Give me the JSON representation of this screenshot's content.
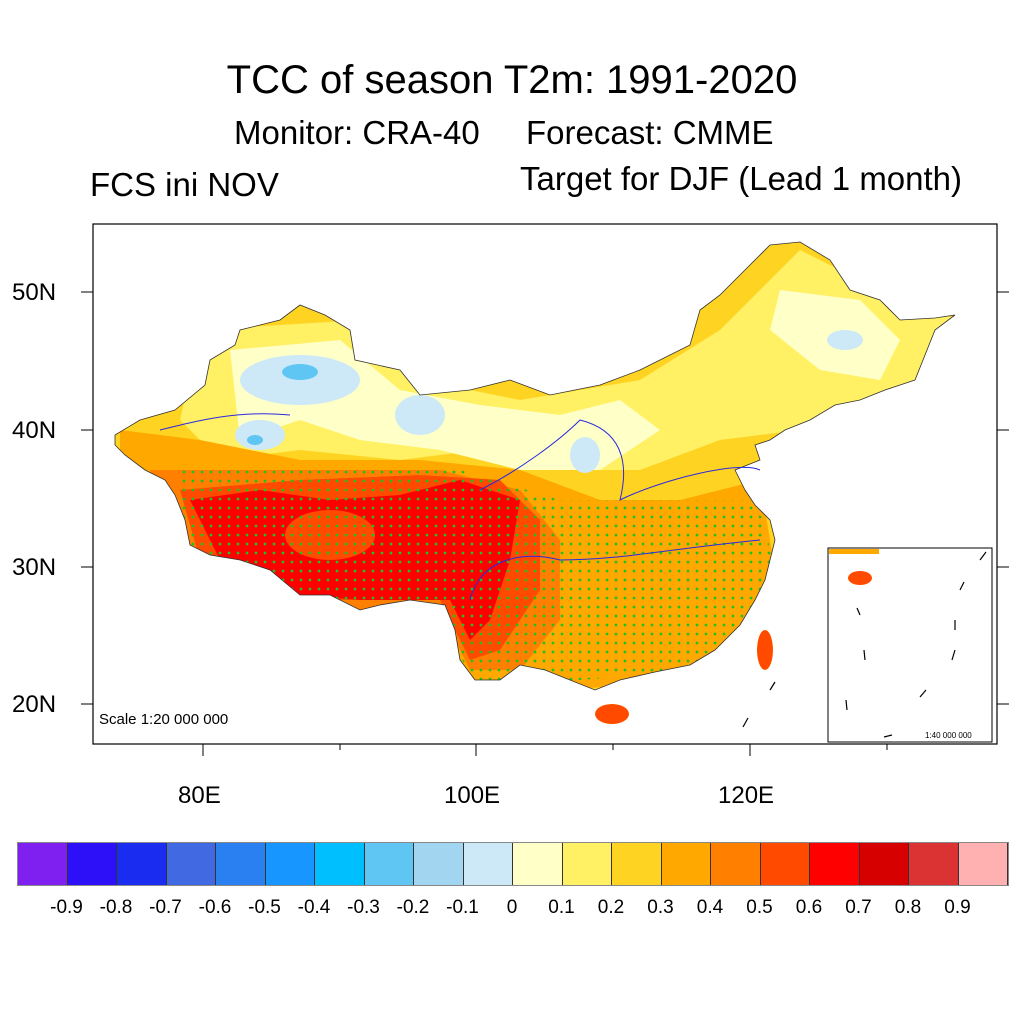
{
  "title": "TCC of season T2m: 1991-2020",
  "monitor": "Monitor: CRA-40",
  "forecast": "Forecast: CMME",
  "init": "FCS ini NOV",
  "target": "Target for DJF (Lead 1 month)",
  "map": {
    "scale_main": "Scale 1:20 000 000",
    "scale_inset": "1:40 000 000",
    "lat_labels": [
      "50N",
      "40N",
      "30N",
      "20N"
    ],
    "lon_labels": [
      "80E",
      "100E",
      "120E"
    ],
    "stipple_color": "#22c022"
  },
  "colorbar": {
    "labels": [
      "-0.9",
      "-0.8",
      "-0.7",
      "-0.6",
      "-0.5",
      "-0.4",
      "-0.3",
      "-0.2",
      "-0.1",
      "0",
      "0.1",
      "0.2",
      "0.3",
      "0.4",
      "0.5",
      "0.6",
      "0.7",
      "0.8",
      "0.9"
    ],
    "colors": [
      "#7f1ff0",
      "#2d0ff8",
      "#1a2cf0",
      "#4169e1",
      "#2a80f0",
      "#1896ff",
      "#00bfff",
      "#5fc5f3",
      "#a2d5f0",
      "#cde9f7",
      "#ffffc8",
      "#fff064",
      "#ffd322",
      "#ffa800",
      "#ff8000",
      "#ff4a00",
      "#ff0000",
      "#d60000",
      "#db3333",
      "#ffb0b0"
    ]
  }
}
